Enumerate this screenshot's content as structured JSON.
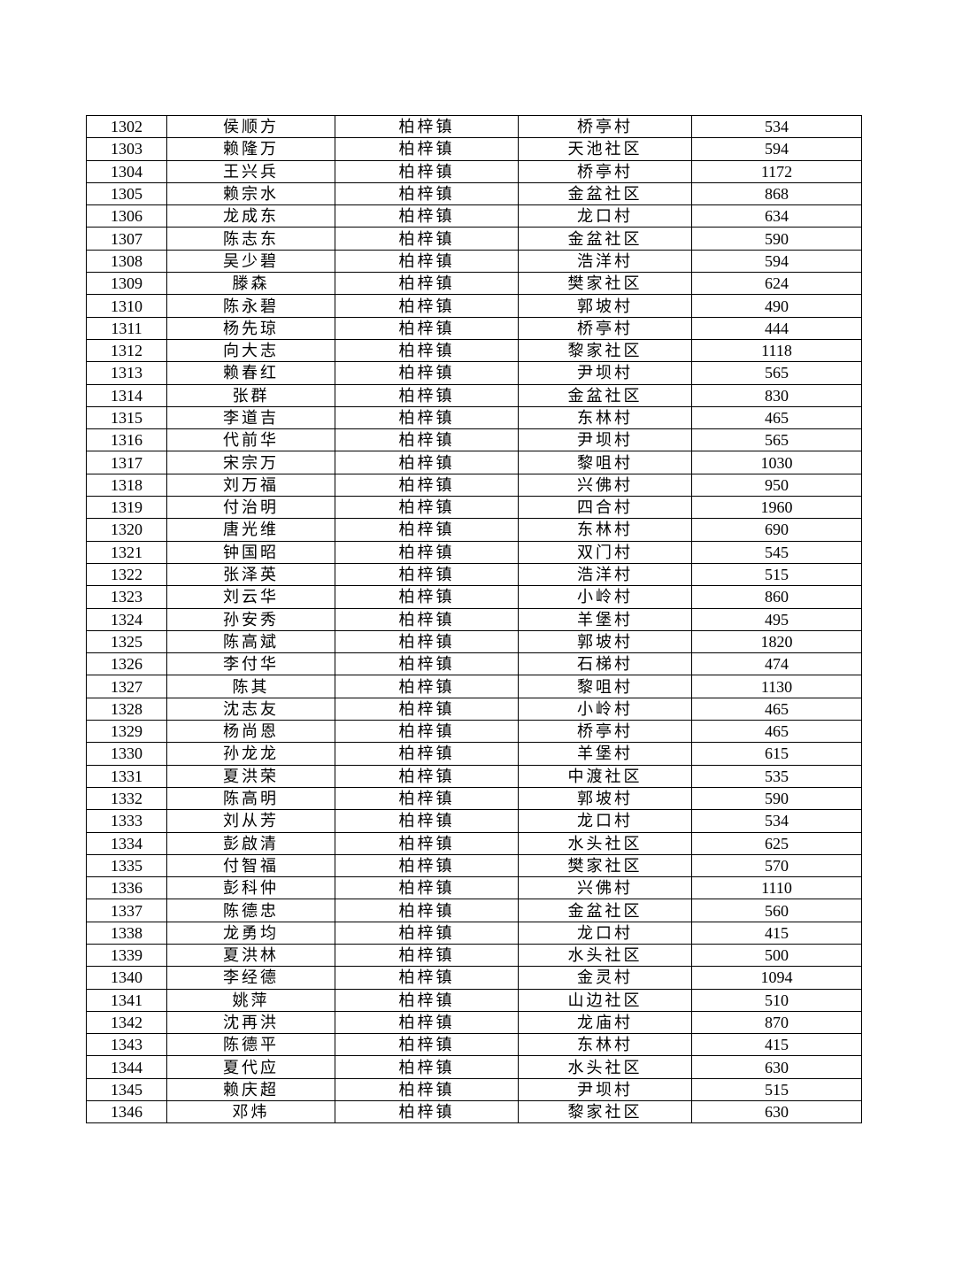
{
  "table": {
    "rows": [
      [
        "1302",
        "侯顺方",
        "柏梓镇",
        "桥亭村",
        "534"
      ],
      [
        "1303",
        "赖隆万",
        "柏梓镇",
        "天池社区",
        "594"
      ],
      [
        "1304",
        "王兴兵",
        "柏梓镇",
        "桥亭村",
        "1172"
      ],
      [
        "1305",
        "赖宗水",
        "柏梓镇",
        "金盆社区",
        "868"
      ],
      [
        "1306",
        "龙成东",
        "柏梓镇",
        "龙口村",
        "634"
      ],
      [
        "1307",
        "陈志东",
        "柏梓镇",
        "金盆社区",
        "590"
      ],
      [
        "1308",
        "吴少碧",
        "柏梓镇",
        "浩洋村",
        "594"
      ],
      [
        "1309",
        "滕森",
        "柏梓镇",
        "樊家社区",
        "624"
      ],
      [
        "1310",
        "陈永碧",
        "柏梓镇",
        "郭坡村",
        "490"
      ],
      [
        "1311",
        "杨先琼",
        "柏梓镇",
        "桥亭村",
        "444"
      ],
      [
        "1312",
        "向大志",
        "柏梓镇",
        "黎家社区",
        "1118"
      ],
      [
        "1313",
        "赖春红",
        "柏梓镇",
        "尹坝村",
        "565"
      ],
      [
        "1314",
        "张群",
        "柏梓镇",
        "金盆社区",
        "830"
      ],
      [
        "1315",
        "李道吉",
        "柏梓镇",
        "东林村",
        "465"
      ],
      [
        "1316",
        "代前华",
        "柏梓镇",
        "尹坝村",
        "565"
      ],
      [
        "1317",
        "宋宗万",
        "柏梓镇",
        "黎咀村",
        "1030"
      ],
      [
        "1318",
        "刘万福",
        "柏梓镇",
        "兴佛村",
        "950"
      ],
      [
        "1319",
        "付治明",
        "柏梓镇",
        "四合村",
        "1960"
      ],
      [
        "1320",
        "唐光维",
        "柏梓镇",
        "东林村",
        "690"
      ],
      [
        "1321",
        "钟国昭",
        "柏梓镇",
        "双门村",
        "545"
      ],
      [
        "1322",
        "张泽英",
        "柏梓镇",
        "浩洋村",
        "515"
      ],
      [
        "1323",
        "刘云华",
        "柏梓镇",
        "小岭村",
        "860"
      ],
      [
        "1324",
        "孙安秀",
        "柏梓镇",
        "羊堡村",
        "495"
      ],
      [
        "1325",
        "陈高斌",
        "柏梓镇",
        "郭坡村",
        "1820"
      ],
      [
        "1326",
        "李付华",
        "柏梓镇",
        "石梯村",
        "474"
      ],
      [
        "1327",
        "陈其",
        "柏梓镇",
        "黎咀村",
        "1130"
      ],
      [
        "1328",
        "沈志友",
        "柏梓镇",
        "小岭村",
        "465"
      ],
      [
        "1329",
        "杨尚恩",
        "柏梓镇",
        "桥亭村",
        "465"
      ],
      [
        "1330",
        "孙龙龙",
        "柏梓镇",
        "羊堡村",
        "615"
      ],
      [
        "1331",
        "夏洪荣",
        "柏梓镇",
        "中渡社区",
        "535"
      ],
      [
        "1332",
        "陈高明",
        "柏梓镇",
        "郭坡村",
        "590"
      ],
      [
        "1333",
        "刘从芳",
        "柏梓镇",
        "龙口村",
        "534"
      ],
      [
        "1334",
        "彭啟清",
        "柏梓镇",
        "水头社区",
        "625"
      ],
      [
        "1335",
        "付智福",
        "柏梓镇",
        "樊家社区",
        "570"
      ],
      [
        "1336",
        "彭科仲",
        "柏梓镇",
        "兴佛村",
        "1110"
      ],
      [
        "1337",
        "陈德忠",
        "柏梓镇",
        "金盆社区",
        "560"
      ],
      [
        "1338",
        "龙勇均",
        "柏梓镇",
        "龙口村",
        "415"
      ],
      [
        "1339",
        "夏洪林",
        "柏梓镇",
        "水头社区",
        "500"
      ],
      [
        "1340",
        "李经德",
        "柏梓镇",
        "金灵村",
        "1094"
      ],
      [
        "1341",
        "姚萍",
        "柏梓镇",
        "山边社区",
        "510"
      ],
      [
        "1342",
        "沈再洪",
        "柏梓镇",
        "龙庙村",
        "870"
      ],
      [
        "1343",
        "陈德平",
        "柏梓镇",
        "东林村",
        "415"
      ],
      [
        "1344",
        "夏代应",
        "柏梓镇",
        "水头社区",
        "630"
      ],
      [
        "1345",
        "赖庆超",
        "柏梓镇",
        "尹坝村",
        "515"
      ],
      [
        "1346",
        "邓炜",
        "柏梓镇",
        "黎家社区",
        "630"
      ]
    ]
  }
}
